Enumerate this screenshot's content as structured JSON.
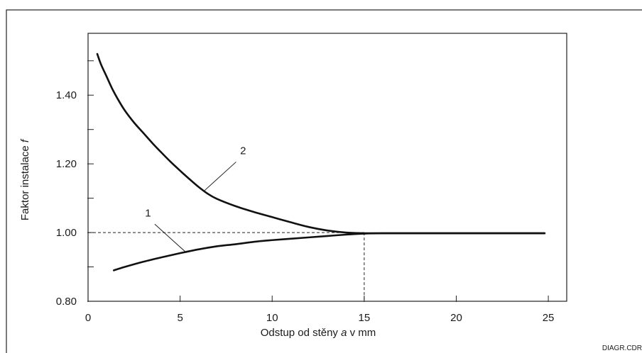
{
  "chart_data": {
    "type": "line",
    "xlabel": "Odstup od stěny a v mm",
    "xlabel_parts": {
      "before": "Odstup od stěny ",
      "var": "a",
      "after": " v mm"
    },
    "ylabel": "Faktor instalace f",
    "ylabel_parts": {
      "before": "Faktor instalace ",
      "var": "f"
    },
    "xlim": [
      0,
      26
    ],
    "ylim": [
      0.8,
      1.58
    ],
    "xticks": [
      0,
      5,
      10,
      15,
      20,
      25
    ],
    "xtick_labels": [
      "0",
      "5",
      "10",
      "15",
      "20",
      "25"
    ],
    "yticks": [
      0.8,
      1.0,
      1.2,
      1.4
    ],
    "ytick_labels": [
      "0.80",
      "1.00",
      "1.20",
      "1.40"
    ],
    "y_minor_ticks": [
      0.9,
      1.1,
      1.3,
      1.5
    ],
    "grid": false,
    "reference_lines": {
      "y": 1.0,
      "x": 15
    },
    "series": [
      {
        "name": "1",
        "x": [
          1.4,
          2,
          3,
          4,
          5,
          6,
          7,
          8,
          9,
          10,
          11,
          12,
          13,
          14,
          15,
          16,
          18,
          20,
          22,
          24,
          24.8
        ],
        "values": [
          0.89,
          0.9,
          0.915,
          0.928,
          0.94,
          0.951,
          0.96,
          0.966,
          0.973,
          0.978,
          0.982,
          0.986,
          0.99,
          0.994,
          0.997,
          0.998,
          0.998,
          0.998,
          0.998,
          0.998,
          0.998
        ]
      },
      {
        "name": "2",
        "x": [
          0.5,
          0.7,
          1,
          1.3,
          1.6,
          2,
          2.5,
          3,
          3.5,
          4,
          4.5,
          5,
          5.5,
          6,
          6.5,
          7,
          8,
          9,
          10,
          11,
          12,
          13,
          14,
          15,
          16,
          18,
          20,
          22,
          24,
          24.8
        ],
        "values": [
          1.52,
          1.49,
          1.455,
          1.42,
          1.39,
          1.355,
          1.32,
          1.29,
          1.26,
          1.232,
          1.205,
          1.18,
          1.156,
          1.133,
          1.113,
          1.098,
          1.077,
          1.06,
          1.045,
          1.03,
          1.016,
          1.006,
          1.0,
          0.998,
          0.998,
          0.998,
          0.998,
          0.998,
          0.998,
          0.998
        ]
      }
    ],
    "annotations": [
      {
        "text": "1",
        "series": "1",
        "at_x": 5.3
      },
      {
        "text": "2",
        "series": "2",
        "at_x": 6.3
      }
    ]
  },
  "footer": {
    "file_code": "DIAGR.CDR"
  }
}
